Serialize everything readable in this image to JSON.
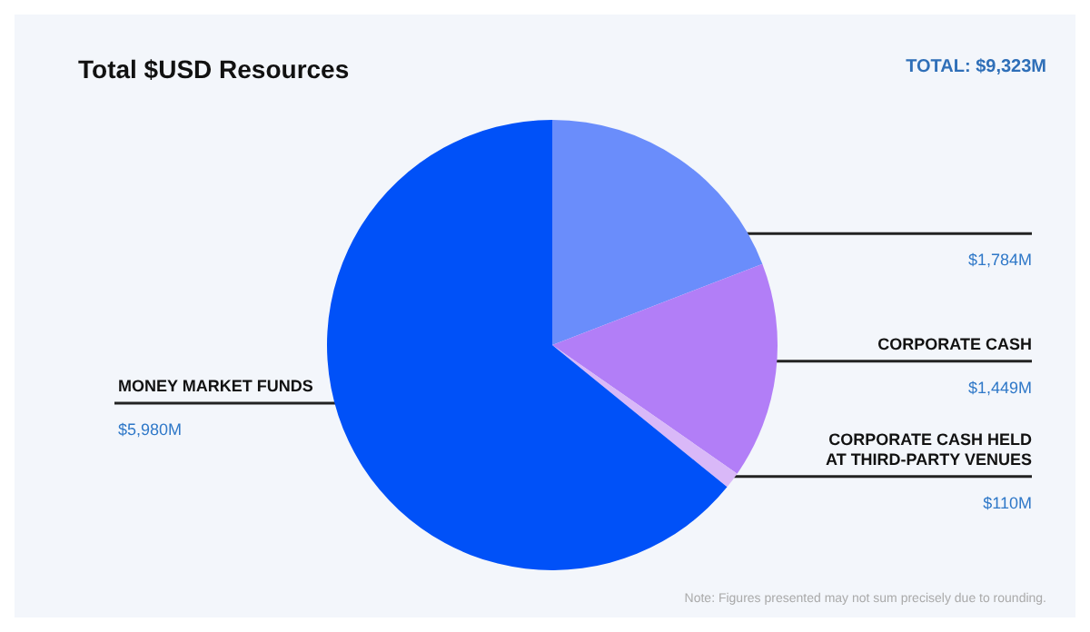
{
  "chart_data": {
    "type": "pie",
    "title": "Total $USD Resources",
    "categories": [
      null,
      "CORPORATE CASH",
      "CORPORATE CASH HELD\nAT THIRD-PARTY VENUES",
      "MONEY MARKET FUNDS"
    ],
    "values": [
      1784,
      1449,
      110,
      5980
    ],
    "colors": [
      "#6a8dfb",
      "#b27ef7",
      "#d9b8f8",
      "#0051f8"
    ],
    "value_labels": [
      "$1,784M",
      "$1,449M",
      "$110M",
      "$5,980M"
    ],
    "legend": false,
    "annotations": [
      "TOTAL: $9,323M",
      "Note: Figures presented may not sum precisely due to rounding."
    ]
  }
}
